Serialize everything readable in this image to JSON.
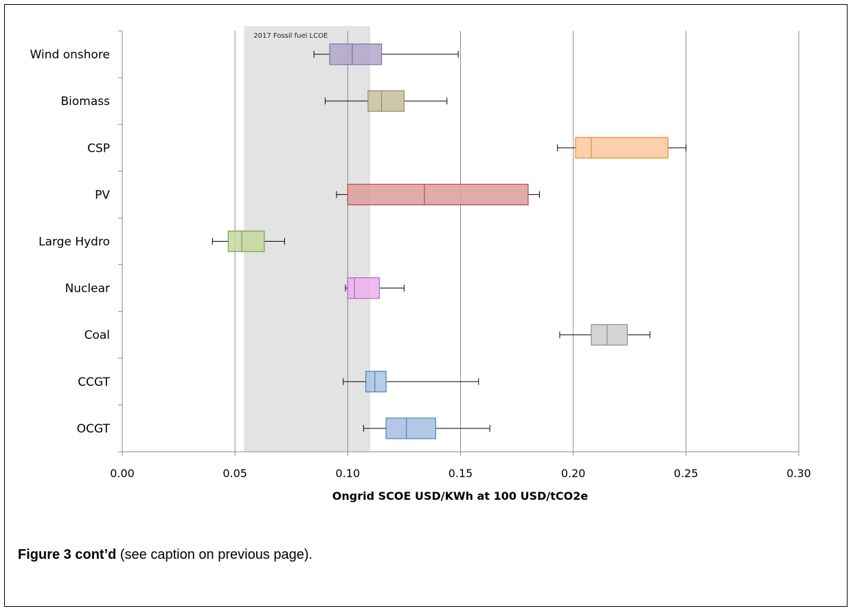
{
  "chart_data": {
    "type": "box",
    "orientation": "horizontal",
    "xlabel": "Ongrid SCOE USD/KWh at 100 USD/tCO2e",
    "xlim": [
      0,
      0.3
    ],
    "xticks": [
      "0.00",
      "0.05",
      "0.10",
      "0.15",
      "0.20",
      "0.25",
      "0.30"
    ],
    "grid": true,
    "shaded_band": {
      "label": "2017 Fossil fuel LCOE",
      "from": 0.054,
      "to": 0.11,
      "color": "#e3e3e3"
    },
    "categories": [
      "Wind onshore",
      "Biomass",
      "CSP",
      "PV",
      "Large Hydro",
      "Nuclear",
      "Coal",
      "CCGT",
      "OCGT"
    ],
    "boxes": [
      {
        "name": "Wind onshore",
        "min": 0.085,
        "q1": 0.092,
        "median": 0.102,
        "q3": 0.115,
        "max": 0.149,
        "fill": "#b1a7c9",
        "stroke": "#7b6ba3"
      },
      {
        "name": "Biomass",
        "min": 0.09,
        "q1": 0.109,
        "median": 0.115,
        "q3": 0.125,
        "max": 0.144,
        "fill": "#c7c09c",
        "stroke": "#918a6a"
      },
      {
        "name": "CSP",
        "min": 0.193,
        "q1": 0.201,
        "median": 0.208,
        "q3": 0.242,
        "max": 0.25,
        "fill": "#fbc89b",
        "stroke": "#e48a3a"
      },
      {
        "name": "PV",
        "min": 0.095,
        "q1": 0.1,
        "median": 0.134,
        "q3": 0.18,
        "max": 0.185,
        "fill": "#dc9c9c",
        "stroke": "#b04b4b"
      },
      {
        "name": "Large Hydro",
        "min": 0.04,
        "q1": 0.047,
        "median": 0.053,
        "q3": 0.063,
        "max": 0.072,
        "fill": "#c5d79e",
        "stroke": "#7f9a50"
      },
      {
        "name": "Nuclear",
        "min": 0.099,
        "q1": 0.1,
        "median": 0.103,
        "q3": 0.114,
        "max": 0.125,
        "fill": "#eab2ea",
        "stroke": "#c45cc4"
      },
      {
        "name": "Coal",
        "min": 0.194,
        "q1": 0.208,
        "median": 0.215,
        "q3": 0.224,
        "max": 0.234,
        "fill": "#cccccc",
        "stroke": "#8c8c8c"
      },
      {
        "name": "CCGT",
        "min": 0.098,
        "q1": 0.108,
        "median": 0.112,
        "q3": 0.117,
        "max": 0.158,
        "fill": "#a9c3e3",
        "stroke": "#4f7fb8"
      },
      {
        "name": "OCGT",
        "min": 0.107,
        "q1": 0.117,
        "median": 0.126,
        "q3": 0.139,
        "max": 0.163,
        "fill": "#a5c0e2",
        "stroke": "#4f7fb8"
      }
    ]
  },
  "caption": {
    "bold": "Figure 3 cont’d",
    "rest": " (see caption on previous page)."
  }
}
